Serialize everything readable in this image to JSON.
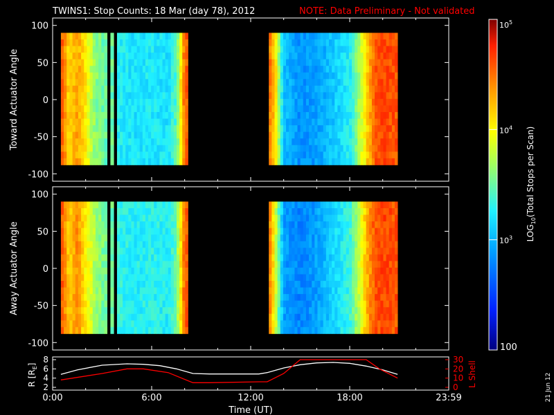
{
  "header": {
    "title": "TWINS1: Stop Counts: 18 Mar (day  78), 2012",
    "note": "NOTE: Data Preliminary - Not validated",
    "note_color": "#ff0000"
  },
  "stamp": "21 Jun 12",
  "colors": {
    "background": "#000000",
    "axes": "#ffffff",
    "r_curve": "#ffffff",
    "l_shell_curve": "#ff0000",
    "colormap": [
      "#00007f",
      "#0020ff",
      "#00a0ff",
      "#20f0ff",
      "#a0ff60",
      "#ffff00",
      "#ffa000",
      "#ff2000",
      "#7f0000"
    ]
  },
  "chart_data": [
    {
      "type": "heatmap",
      "ylabel": "Toward Actuator Angle",
      "ylim": [
        -110,
        110
      ],
      "yticks": [
        "100",
        "50",
        "0",
        "-50",
        "-100"
      ],
      "xlim": [
        0,
        24
      ],
      "x_unit": "hours UT",
      "angle_range": [
        -88,
        90
      ],
      "data_intervals_ut": [
        [
          0.5,
          3.3
        ],
        [
          3.5,
          3.7
        ],
        [
          3.9,
          8.2
        ],
        [
          13.1,
          20.9
        ]
      ],
      "relative_level_by_hour": [
        [
          0.5,
          0.88
        ],
        [
          1.0,
          0.7
        ],
        [
          1.5,
          0.78
        ],
        [
          2.0,
          0.68
        ],
        [
          2.5,
          0.55
        ],
        [
          3.0,
          0.5
        ],
        [
          3.6,
          0.5
        ],
        [
          4.0,
          0.42
        ],
        [
          5.0,
          0.4
        ],
        [
          6.0,
          0.41
        ],
        [
          7.0,
          0.4
        ],
        [
          7.5,
          0.48
        ],
        [
          8.0,
          0.85
        ],
        [
          13.1,
          0.85
        ],
        [
          13.5,
          0.7
        ],
        [
          14.0,
          0.35
        ],
        [
          15.0,
          0.28
        ],
        [
          16.0,
          0.3
        ],
        [
          17.0,
          0.36
        ],
        [
          18.0,
          0.42
        ],
        [
          18.5,
          0.55
        ],
        [
          19.0,
          0.7
        ],
        [
          19.5,
          0.85
        ],
        [
          20.0,
          0.88
        ],
        [
          20.9,
          0.86
        ]
      ]
    },
    {
      "type": "heatmap",
      "ylabel": "Away Actuator Angle",
      "ylim": [
        -110,
        110
      ],
      "yticks": [
        "100",
        "50",
        "0",
        "-50",
        "-100"
      ],
      "xlim": [
        0,
        24
      ],
      "x_unit": "hours UT",
      "angle_range": [
        -88,
        90
      ],
      "data_intervals_ut": [
        [
          0.5,
          3.3
        ],
        [
          3.5,
          3.7
        ],
        [
          3.9,
          8.2
        ],
        [
          13.1,
          20.9
        ]
      ],
      "relative_level_by_hour": [
        [
          0.5,
          0.88
        ],
        [
          1.0,
          0.72
        ],
        [
          1.5,
          0.8
        ],
        [
          2.0,
          0.68
        ],
        [
          2.5,
          0.58
        ],
        [
          3.0,
          0.52
        ],
        [
          3.6,
          0.5
        ],
        [
          4.0,
          0.44
        ],
        [
          5.0,
          0.42
        ],
        [
          6.0,
          0.43
        ],
        [
          7.0,
          0.42
        ],
        [
          7.5,
          0.5
        ],
        [
          8.0,
          0.86
        ],
        [
          13.1,
          0.85
        ],
        [
          13.5,
          0.62
        ],
        [
          14.0,
          0.3
        ],
        [
          15.0,
          0.26
        ],
        [
          16.0,
          0.3
        ],
        [
          17.0,
          0.38
        ],
        [
          18.0,
          0.45
        ],
        [
          18.5,
          0.58
        ],
        [
          19.0,
          0.74
        ],
        [
          19.5,
          0.86
        ],
        [
          20.0,
          0.88
        ],
        [
          20.9,
          0.86
        ]
      ]
    },
    {
      "type": "line",
      "xlabel": "Time (UT)",
      "xlim": [
        0,
        24
      ],
      "xticks": [
        "0:00",
        "6:00",
        "12:00",
        "18:00",
        "23:59"
      ],
      "xtick_hours": [
        0,
        6,
        12,
        18,
        24
      ],
      "left_axis": {
        "label": "R [R",
        "label_sub": "E",
        "label_close": "]",
        "ylim": [
          2,
          8
        ],
        "yticks": [
          "2",
          "4",
          "6",
          "8"
        ]
      },
      "right_axis": {
        "label": "L Shell",
        "ylim": [
          0,
          30
        ],
        "yticks": [
          "0",
          "10",
          "20",
          "30"
        ]
      },
      "series": [
        {
          "axis": "left",
          "color": "#ffffff",
          "x": [
            0.5,
            1.5,
            3.0,
            4.5,
            5.5,
            6.5,
            7.5,
            8.5,
            9.5,
            11.0,
            12.5,
            13.0,
            14.0,
            15.0,
            16.0,
            17.0,
            18.0,
            19.0,
            20.0,
            20.9
          ],
          "y": [
            4.8,
            5.8,
            6.8,
            7.1,
            7.0,
            6.7,
            6.0,
            5.0,
            4.9,
            4.9,
            4.9,
            5.2,
            6.2,
            6.9,
            7.3,
            7.4,
            7.2,
            6.6,
            5.8,
            4.8
          ]
        },
        {
          "axis": "right",
          "color": "#ff0000",
          "x": [
            0.5,
            3.0,
            4.5,
            5.5,
            7.0,
            8.5,
            9.5,
            12.5,
            13.0,
            14.0,
            15.0,
            16.5,
            17.0,
            18.0,
            19.0,
            19.8,
            20.9
          ],
          "y": [
            8,
            15,
            20,
            20,
            16,
            5,
            5,
            6,
            6,
            15,
            30,
            30,
            30,
            30,
            30,
            20,
            10
          ]
        }
      ]
    }
  ],
  "colorbar": {
    "label": "LOG",
    "label_sub": "10",
    "label_rest": "(Total Stops per Scan)",
    "min": 100,
    "max": 100000,
    "ticks": [
      {
        "value": 1000,
        "base": "10",
        "exp": "3"
      },
      {
        "value": 10000,
        "base": "10",
        "exp": "4"
      },
      {
        "value": 100000,
        "base": "10",
        "exp": "5"
      }
    ],
    "bottom_label": "100"
  }
}
